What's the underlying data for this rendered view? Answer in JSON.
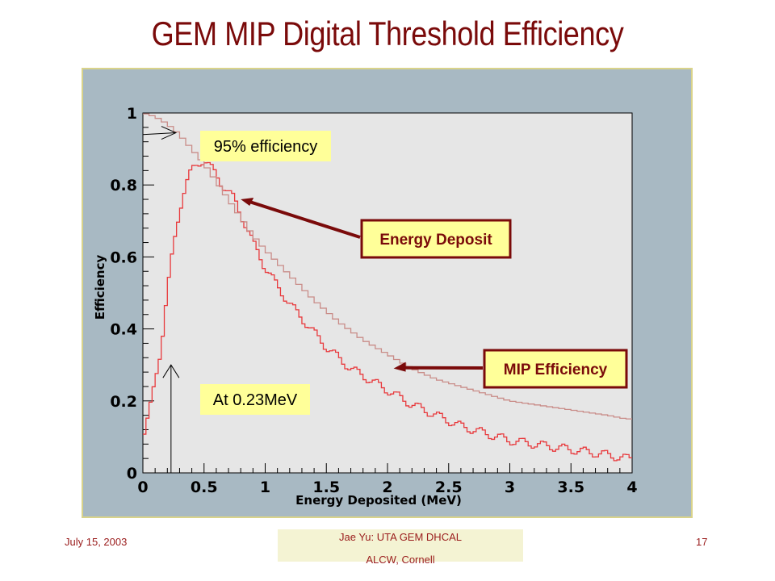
{
  "slide": {
    "title": "GEM MIP Digital Threshold Efficiency",
    "footer_date": "July 15, 2003",
    "footer_author": "Jae Yu: UTA GEM DHCAL",
    "footer_venue": "ALCW, Cornell",
    "page_number": "17"
  },
  "chart_data": {
    "type": "line",
    "title": "",
    "xlabel": "Energy Deposited (MeV)",
    "ylabel": "Efficiency",
    "xlim": [
      0,
      4
    ],
    "ylim": [
      0,
      1.0
    ],
    "x_ticks": [
      "0",
      "0.5",
      "1",
      "1.5",
      "2",
      "2.5",
      "3",
      "3.5",
      "4"
    ],
    "y_ticks": [
      "0",
      "0.2",
      "0.4",
      "0.6",
      "0.8",
      "1"
    ],
    "grid": false,
    "series": [
      {
        "name": "Energy Deposit",
        "style": "histogram-step",
        "color": "#e8393c",
        "x": [
          0.0,
          0.05,
          0.1,
          0.15,
          0.2,
          0.25,
          0.3,
          0.35,
          0.4,
          0.45,
          0.5,
          0.55,
          0.6,
          0.65,
          0.7,
          0.75,
          0.8,
          0.85,
          0.9,
          0.95,
          1.0,
          1.1,
          1.2,
          1.3,
          1.4,
          1.5,
          1.6,
          1.7,
          1.8,
          1.9,
          2.0,
          2.2,
          2.4,
          2.6,
          2.8,
          3.0,
          3.2,
          3.4,
          3.6,
          3.8,
          3.95
        ],
        "values": [
          0.09,
          0.16,
          0.26,
          0.35,
          0.5,
          0.63,
          0.73,
          0.8,
          0.84,
          0.86,
          0.87,
          0.85,
          0.83,
          0.8,
          0.78,
          0.76,
          0.72,
          0.68,
          0.64,
          0.61,
          0.57,
          0.52,
          0.47,
          0.43,
          0.39,
          0.35,
          0.32,
          0.29,
          0.27,
          0.25,
          0.23,
          0.19,
          0.16,
          0.13,
          0.11,
          0.09,
          0.08,
          0.07,
          0.06,
          0.05,
          0.04
        ]
      },
      {
        "name": "MIP Efficiency",
        "style": "histogram-step",
        "color": "#c98c88",
        "x": [
          0.0,
          0.1,
          0.2,
          0.3,
          0.4,
          0.5,
          0.6,
          0.7,
          0.8,
          0.9,
          1.0,
          1.2,
          1.4,
          1.6,
          1.8,
          2.0,
          2.2,
          2.4,
          2.6,
          2.8,
          3.0,
          3.2,
          3.4,
          3.6,
          3.8,
          3.95
        ],
        "values": [
          1.0,
          0.99,
          0.97,
          0.94,
          0.9,
          0.86,
          0.81,
          0.76,
          0.71,
          0.66,
          0.62,
          0.55,
          0.48,
          0.42,
          0.37,
          0.33,
          0.29,
          0.26,
          0.24,
          0.22,
          0.2,
          0.19,
          0.18,
          0.17,
          0.16,
          0.15
        ]
      }
    ],
    "annotations": [
      {
        "text": "95% efficiency",
        "x": 0.27,
        "y": 0.95,
        "style": "yellow-box"
      },
      {
        "text": "At 0.23MeV",
        "x": 0.23,
        "y": 0.3,
        "style": "yellow-box"
      },
      {
        "text": "Energy Deposit",
        "points_to_series": "Energy Deposit",
        "target_x": 0.8,
        "target_y": 0.76,
        "style": "boxed-label-arrow"
      },
      {
        "text": "MIP Efficiency",
        "points_to_series": "MIP Efficiency",
        "target_x": 2.05,
        "target_y": 0.29,
        "style": "boxed-label-arrow"
      }
    ],
    "colors": {
      "background": "#a8b9c3",
      "plot_area": "#e6e6e6",
      "frame_border": "#d9d38a",
      "callout_fill": "#ffff99",
      "label_border": "#7a0a0a",
      "title_color": "#7a0a0a"
    }
  }
}
